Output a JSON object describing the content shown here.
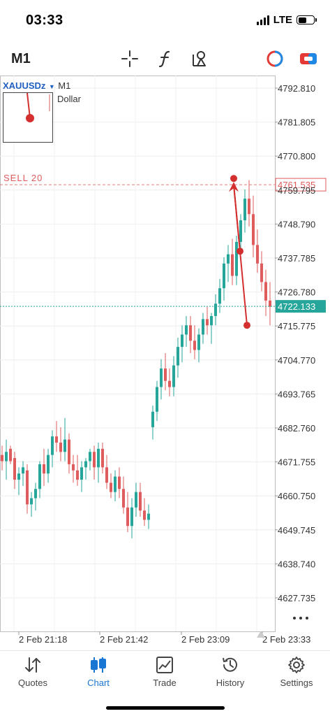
{
  "status": {
    "time": "03:33",
    "network": "LTE"
  },
  "toolbar": {
    "timeframe": "M1"
  },
  "chart_data": {
    "type": "candlestick",
    "symbol": "XAUUSDz",
    "timeframe": "M1",
    "description": "Dollar",
    "price_ticks": [
      "4792.810",
      "4781.805",
      "4770.800",
      "4759.795",
      "4748.790",
      "4737.785",
      "4726.780",
      "4715.775",
      "4704.770",
      "4693.765",
      "4682.760",
      "4671.755",
      "4660.750",
      "4649.745",
      "4638.740",
      "4627.735"
    ],
    "time_ticks": [
      "2 Feb 21:18",
      "2 Feb 21:42",
      "2 Feb 23:09",
      "2 Feb 23:33"
    ],
    "sell_order": {
      "label": "SELL 20",
      "price": "4761.535",
      "value": 4761.535
    },
    "current_price": {
      "label": "4722.133",
      "value": 4722.133
    },
    "trade_markers": [
      {
        "type": "entry",
        "value": 4761.5
      },
      {
        "type": "mid",
        "value": 4740.0
      },
      {
        "type": "target",
        "value": 4716.0
      }
    ],
    "colors": {
      "bull": "#26a69a",
      "bear": "#e05b5b",
      "sell_line": "#e05b5b",
      "price_line": "#26a69a",
      "marker": "#d32f2f"
    },
    "candles": [
      [
        4674,
        4677,
        4669,
        4672
      ],
      [
        4672,
        4679,
        4666,
        4675
      ],
      [
        4676,
        4677,
        4671,
        4672
      ],
      [
        4673,
        4675,
        4663,
        4666
      ],
      [
        4666,
        4670,
        4661,
        4668
      ],
      [
        4668,
        4672,
        4664,
        4670
      ],
      [
        4669,
        4671,
        4655,
        4658
      ],
      [
        4658,
        4662,
        4654,
        4660
      ],
      [
        4660,
        4665,
        4656,
        4663
      ],
      [
        4663,
        4672,
        4660,
        4671
      ],
      [
        4671,
        4676,
        4664,
        4668
      ],
      [
        4668,
        4676,
        4665,
        4674
      ],
      [
        4674,
        4682,
        4670,
        4680
      ],
      [
        4680,
        4685,
        4675,
        4678
      ],
      [
        4678,
        4683,
        4672,
        4675
      ],
      [
        4675,
        4686,
        4672,
        4679
      ],
      [
        4679,
        4681,
        4668,
        4671
      ],
      [
        4671,
        4674,
        4665,
        4669
      ],
      [
        4669,
        4674,
        4664,
        4666
      ],
      [
        4666,
        4672,
        4662,
        4670
      ],
      [
        4670,
        4673,
        4666,
        4672
      ],
      [
        4672,
        4676,
        4669,
        4675
      ],
      [
        4675,
        4677,
        4666,
        4670
      ],
      [
        4670,
        4678,
        4665,
        4676
      ],
      [
        4676,
        4678,
        4668,
        4670
      ],
      [
        4670,
        4674,
        4663,
        4665
      ],
      [
        4665,
        4668,
        4660,
        4662
      ],
      [
        4662,
        4669,
        4659,
        4667
      ],
      [
        4667,
        4670,
        4660,
        4663
      ],
      [
        4663,
        4667,
        4655,
        4657
      ],
      [
        4657,
        4662,
        4649,
        4651
      ],
      [
        4651,
        4660,
        4647,
        4657
      ],
      [
        4657,
        4665,
        4654,
        4662
      ],
      [
        4662,
        4665,
        4654,
        4656
      ],
      [
        4656,
        4660,
        4651,
        4653
      ],
      [
        4653,
        4658,
        4650,
        4655
      ],
      [
        4683,
        4690,
        4679,
        4688
      ],
      [
        4688,
        4698,
        4685,
        4696
      ],
      [
        4696,
        4705,
        4692,
        4702
      ],
      [
        4702,
        4707,
        4695,
        4698
      ],
      [
        4698,
        4702,
        4693,
        4696
      ],
      [
        4696,
        4706,
        4693,
        4703
      ],
      [
        4703,
        4712,
        4699,
        4709
      ],
      [
        4709,
        4716,
        4704,
        4713
      ],
      [
        4713,
        4719,
        4709,
        4716
      ],
      [
        4716,
        4719,
        4707,
        4711
      ],
      [
        4711,
        4716,
        4705,
        4708
      ],
      [
        4708,
        4715,
        4704,
        4713
      ],
      [
        4713,
        4720,
        4710,
        4718
      ],
      [
        4718,
        4722,
        4713,
        4716
      ],
      [
        4716,
        4720,
        4710,
        4719
      ],
      [
        4719,
        4726,
        4716,
        4723
      ],
      [
        4723,
        4731,
        4720,
        4728
      ],
      [
        4728,
        4738,
        4724,
        4736
      ],
      [
        4736,
        4742,
        4730,
        4739
      ],
      [
        4739,
        4744,
        4729,
        4732
      ],
      [
        4732,
        4745,
        4729,
        4743
      ],
      [
        4743,
        4752,
        4739,
        4750
      ],
      [
        4750,
        4760,
        4746,
        4757
      ],
      [
        4757,
        4763,
        4748,
        4752
      ],
      [
        4752,
        4758,
        4738,
        4742
      ],
      [
        4742,
        4747,
        4733,
        4736
      ],
      [
        4736,
        4740,
        4727,
        4730
      ],
      [
        4730,
        4734,
        4719,
        4724
      ],
      [
        4724,
        4730,
        4716,
        4722
      ]
    ]
  },
  "nav": {
    "items": [
      {
        "label": "Quotes"
      },
      {
        "label": "Chart"
      },
      {
        "label": "Trade"
      },
      {
        "label": "History"
      },
      {
        "label": "Settings"
      }
    ]
  }
}
